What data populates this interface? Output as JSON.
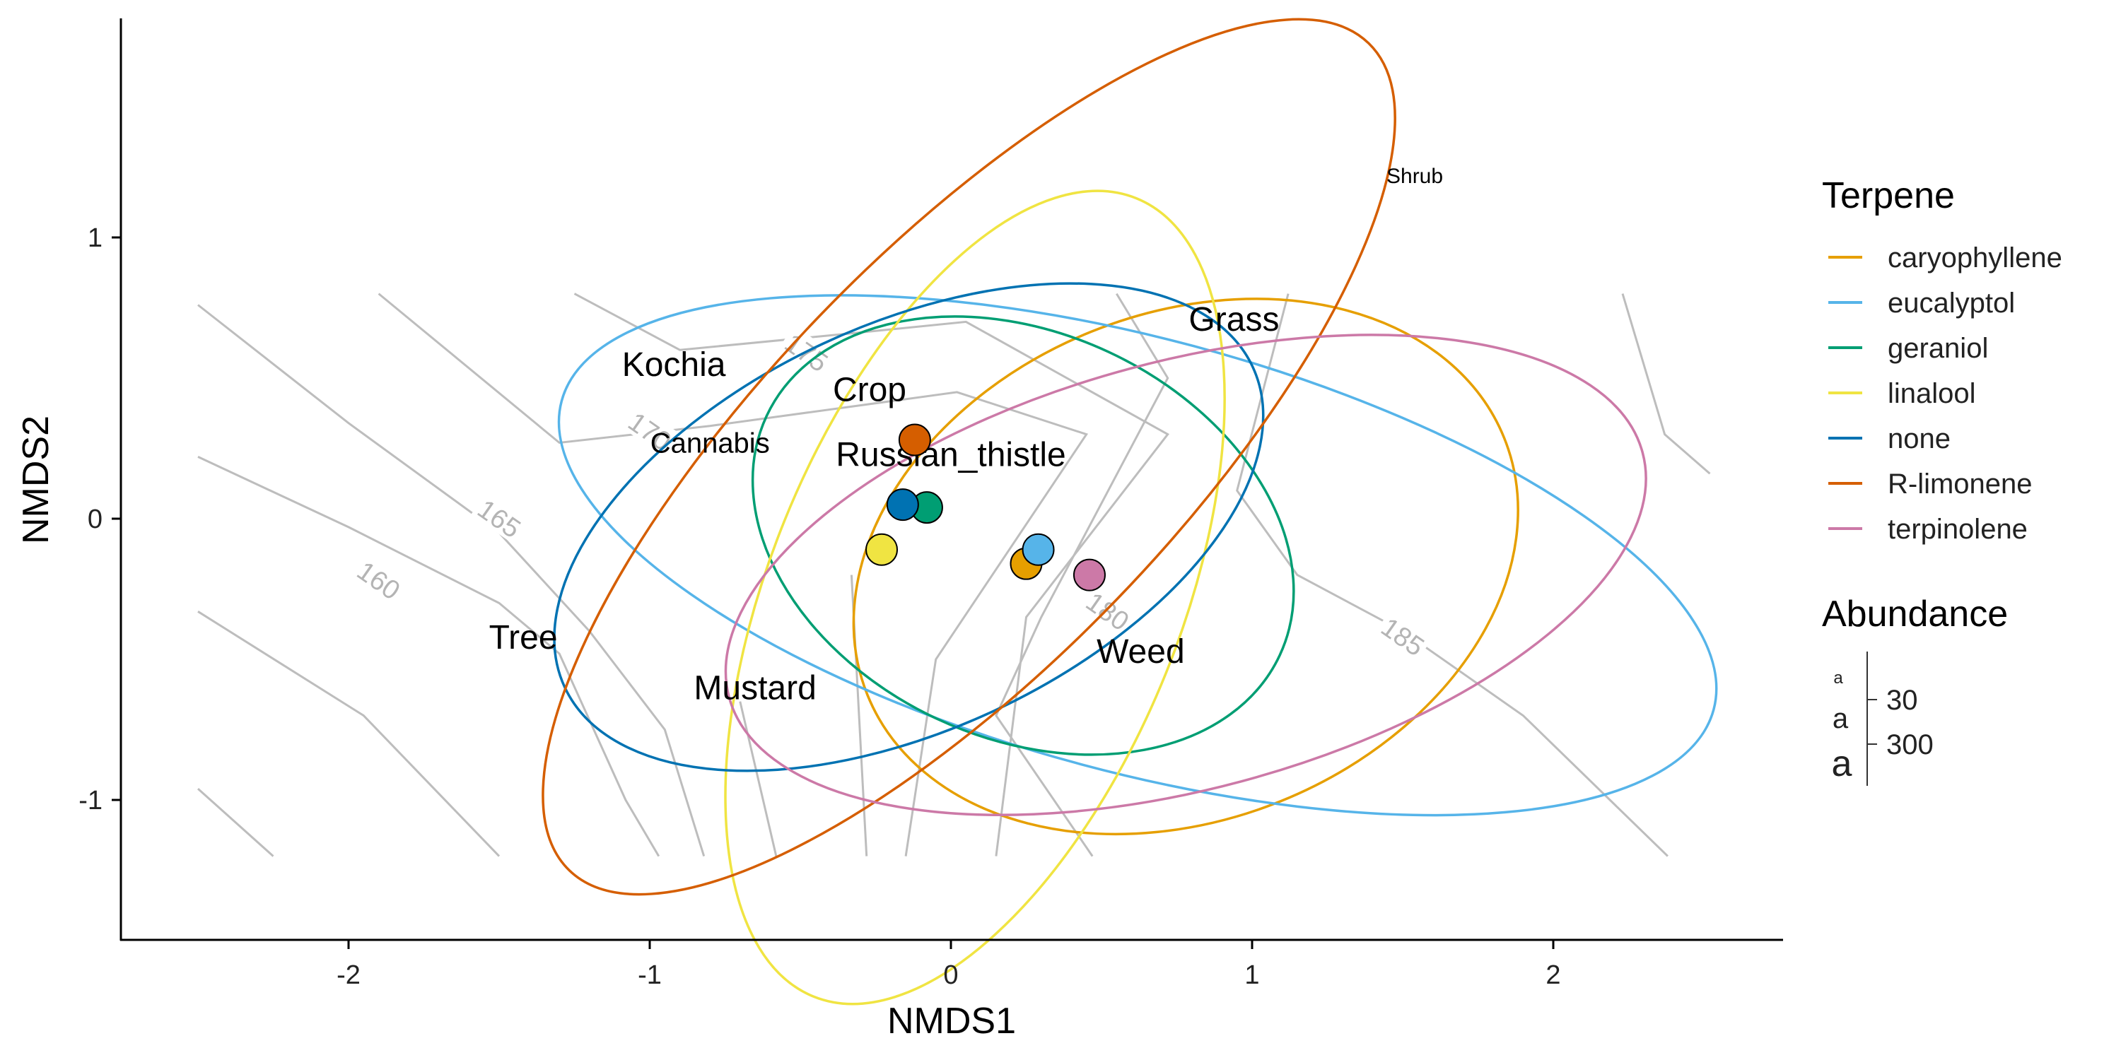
{
  "chart_data": {
    "type": "scatter",
    "xlabel": "NMDS1",
    "ylabel": "NMDS2",
    "xlim": [
      -2.8,
      2.75
    ],
    "ylim": [
      -1.5,
      1.77
    ],
    "x_ticks": [
      "-2",
      "-1",
      "0",
      "1",
      "2"
    ],
    "y_ticks": [
      "-1",
      "0",
      "1"
    ],
    "grid": false,
    "legend_position": "right",
    "series": [
      {
        "name": "caryophyllene",
        "color": "#E69F00",
        "centroid": [
          0.25,
          -0.16
        ],
        "ellipse": {
          "cx": 0.78,
          "cy": -0.17,
          "rx": 1.14,
          "ry": 0.9,
          "angle": 22
        }
      },
      {
        "name": "eucalyptol",
        "color": "#56B4E9",
        "centroid": [
          0.29,
          -0.11
        ],
        "ellipse": {
          "cx": 0.62,
          "cy": -0.13,
          "rx": 1.98,
          "ry": 0.77,
          "angle": -15
        }
      },
      {
        "name": "geraniol",
        "color": "#009E73",
        "centroid": [
          -0.08,
          0.04
        ],
        "ellipse": {
          "cx": 0.24,
          "cy": -0.06,
          "rx": 0.94,
          "ry": 0.72,
          "angle": -25
        }
      },
      {
        "name": "linalool",
        "color": "#F0E442",
        "centroid": [
          -0.23,
          -0.11
        ],
        "ellipse": {
          "cx": 0.08,
          "cy": -0.28,
          "rx": 1.43,
          "ry": 0.73,
          "angle": 68
        }
      },
      {
        "name": "none",
        "color": "#0072B2",
        "centroid": [
          -0.16,
          0.05
        ],
        "ellipse": {
          "cx": -0.14,
          "cy": -0.03,
          "rx": 1.26,
          "ry": 0.72,
          "angle": 25
        }
      },
      {
        "name": "R-limonene",
        "color": "#D55E00",
        "centroid": [
          -0.12,
          0.28
        ],
        "ellipse": {
          "cx": 0.06,
          "cy": 0.22,
          "rx": 1.91,
          "ry": 0.73,
          "angle": 46
        }
      },
      {
        "name": "terpinolene",
        "color": "#CC79A7",
        "centroid": [
          0.46,
          -0.2
        ],
        "ellipse": {
          "cx": 0.78,
          "cy": -0.2,
          "rx": 1.57,
          "ry": 0.76,
          "angle": 15
        }
      }
    ],
    "species_labels": [
      {
        "text": "Shrub",
        "x": 1.54,
        "y": 1.22,
        "size": "small"
      },
      {
        "text": "Grass",
        "x": 0.94,
        "y": 0.71,
        "size": "large"
      },
      {
        "text": "Kochia",
        "x": -0.92,
        "y": 0.55,
        "size": "large"
      },
      {
        "text": "Crop",
        "x": -0.27,
        "y": 0.46,
        "size": "large"
      },
      {
        "text": "Cannabis",
        "x": -0.8,
        "y": 0.27,
        "size": "medium"
      },
      {
        "text": "Russian_thistle",
        "x": 0.0,
        "y": 0.23,
        "size": "large"
      },
      {
        "text": "Tree",
        "x": -1.42,
        "y": -0.42,
        "size": "large"
      },
      {
        "text": "Weed",
        "x": 0.63,
        "y": -0.47,
        "size": "large"
      },
      {
        "text": "Mustard",
        "x": -0.65,
        "y": -0.6,
        "size": "large"
      }
    ],
    "contours": [
      {
        "level": 160,
        "points": [
          [
            -2.5,
            0.22
          ],
          [
            -2.0,
            -0.03
          ],
          [
            -1.5,
            -0.3
          ],
          [
            -1.3,
            -0.48
          ],
          [
            -1.08,
            -1.0
          ],
          [
            -0.97,
            -1.2
          ]
        ]
      },
      {
        "level": 165,
        "points": [
          [
            -2.5,
            0.76
          ],
          [
            -2.0,
            0.34
          ],
          [
            -1.5,
            -0.05
          ],
          [
            -1.2,
            -0.4
          ],
          [
            -0.95,
            -0.75
          ],
          [
            -0.82,
            -1.2
          ]
        ]
      },
      {
        "level": 170,
        "points": [
          [
            -1.9,
            0.8
          ],
          [
            -1.3,
            0.27
          ],
          [
            -0.8,
            0.33
          ],
          [
            0.02,
            0.45
          ],
          [
            0.45,
            0.3
          ],
          [
            -0.05,
            -0.5
          ],
          [
            -0.15,
            -1.2
          ]
        ]
      },
      {
        "level": 175,
        "points": [
          [
            -1.25,
            0.8
          ],
          [
            -0.9,
            0.6
          ],
          [
            -0.32,
            0.66
          ],
          [
            0.05,
            0.7
          ],
          [
            0.72,
            0.3
          ],
          [
            0.25,
            -0.35
          ],
          [
            0.15,
            -1.2
          ]
        ]
      },
      {
        "level": 180,
        "points": [
          [
            0.55,
            0.8
          ],
          [
            0.72,
            0.5
          ],
          [
            0.3,
            -0.35
          ],
          [
            0.15,
            -0.7
          ],
          [
            0.47,
            -1.2
          ]
        ]
      },
      {
        "level": 185,
        "points": [
          [
            1.12,
            0.8
          ],
          [
            0.95,
            0.1
          ],
          [
            1.15,
            -0.2
          ],
          [
            1.5,
            -0.4
          ],
          [
            1.9,
            -0.7
          ],
          [
            2.38,
            -1.2
          ]
        ]
      },
      {
        "points": [
          [
            2.23,
            0.8
          ],
          [
            2.37,
            0.3
          ],
          [
            2.52,
            0.16
          ]
        ]
      },
      {
        "points": [
          [
            -2.5,
            -0.33
          ],
          [
            -1.95,
            -0.7
          ],
          [
            -1.5,
            -1.2
          ]
        ]
      },
      {
        "points": [
          [
            -2.5,
            -0.96
          ],
          [
            -2.25,
            -1.2
          ]
        ]
      },
      {
        "points": [
          [
            -0.7,
            -0.65
          ],
          [
            -0.58,
            -1.2
          ]
        ]
      },
      {
        "points": [
          [
            -0.33,
            -0.2
          ],
          [
            -0.28,
            -1.2
          ]
        ]
      }
    ],
    "contour_labels": [
      {
        "text": "160",
        "x": -1.9,
        "y": -0.22
      },
      {
        "text": "165",
        "x": -1.5,
        "y": 0.0
      },
      {
        "text": "170",
        "x": -1.0,
        "y": 0.31
      },
      {
        "text": "175",
        "x": -0.48,
        "y": 0.59
      },
      {
        "text": "180",
        "x": 0.52,
        "y": -0.33
      },
      {
        "text": "185",
        "x": 1.5,
        "y": -0.42
      }
    ]
  },
  "legend": {
    "terpene_title": "Terpene",
    "abundance_title": "Abundance",
    "abundance_values": [
      "30",
      "300"
    ],
    "key_glyph": "a"
  }
}
